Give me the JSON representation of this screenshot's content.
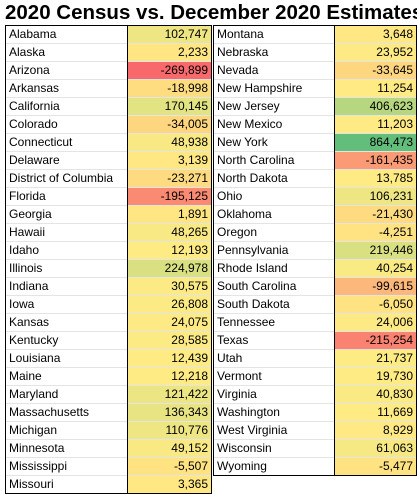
{
  "title": "2020 Census vs. December 2020 Estimates",
  "chart_data": {
    "type": "table",
    "title": "2020 Census vs. December 2020 Estimates",
    "columns": [
      {
        "rows": [
          {
            "state": "Alabama",
            "value": 102747,
            "display": "102,747"
          },
          {
            "state": "Alaska",
            "value": 2233,
            "display": "2,233"
          },
          {
            "state": "Arizona",
            "value": -269899,
            "display": "-269,899"
          },
          {
            "state": "Arkansas",
            "value": -18998,
            "display": "-18,998"
          },
          {
            "state": "California",
            "value": 170145,
            "display": "170,145"
          },
          {
            "state": "Colorado",
            "value": -34005,
            "display": "-34,005"
          },
          {
            "state": "Connecticut",
            "value": 48938,
            "display": "48,938"
          },
          {
            "state": "Delaware",
            "value": 3139,
            "display": "3,139"
          },
          {
            "state": "District of Columbia",
            "value": -23271,
            "display": "-23,271"
          },
          {
            "state": "Florida",
            "value": -195125,
            "display": "-195,125"
          },
          {
            "state": "Georgia",
            "value": 1891,
            "display": "1,891"
          },
          {
            "state": "Hawaii",
            "value": 48265,
            "display": "48,265"
          },
          {
            "state": "Idaho",
            "value": 12193,
            "display": "12,193"
          },
          {
            "state": "Illinois",
            "value": 224978,
            "display": "224,978"
          },
          {
            "state": "Indiana",
            "value": 30575,
            "display": "30,575"
          },
          {
            "state": "Iowa",
            "value": 26808,
            "display": "26,808"
          },
          {
            "state": "Kansas",
            "value": 24075,
            "display": "24,075"
          },
          {
            "state": "Kentucky",
            "value": 28585,
            "display": "28,585"
          },
          {
            "state": "Louisiana",
            "value": 12439,
            "display": "12,439"
          },
          {
            "state": "Maine",
            "value": 12218,
            "display": "12,218"
          },
          {
            "state": "Maryland",
            "value": 121422,
            "display": "121,422"
          },
          {
            "state": "Massachusetts",
            "value": 136343,
            "display": "136,343"
          },
          {
            "state": "Michigan",
            "value": 110776,
            "display": "110,776"
          },
          {
            "state": "Minnesota",
            "value": 49152,
            "display": "49,152"
          },
          {
            "state": "Mississippi",
            "value": -5507,
            "display": "-5,507"
          },
          {
            "state": "Missouri",
            "value": 3365,
            "display": "3,365"
          }
        ]
      },
      {
        "rows": [
          {
            "state": "Montana",
            "value": 3648,
            "display": "3,648"
          },
          {
            "state": "Nebraska",
            "value": 23952,
            "display": "23,952"
          },
          {
            "state": "Nevada",
            "value": -33645,
            "display": "-33,645"
          },
          {
            "state": "New Hampshire",
            "value": 11254,
            "display": "11,254"
          },
          {
            "state": "New Jersey",
            "value": 406623,
            "display": "406,623"
          },
          {
            "state": "New Mexico",
            "value": 11203,
            "display": "11,203"
          },
          {
            "state": "New York",
            "value": 864473,
            "display": "864,473"
          },
          {
            "state": "North Carolina",
            "value": -161435,
            "display": "-161,435"
          },
          {
            "state": "North Dakota",
            "value": 13785,
            "display": "13,785"
          },
          {
            "state": "Ohio",
            "value": 106231,
            "display": "106,231"
          },
          {
            "state": "Oklahoma",
            "value": -21430,
            "display": "-21,430"
          },
          {
            "state": "Oregon",
            "value": -4251,
            "display": "-4,251"
          },
          {
            "state": "Pennsylvania",
            "value": 219446,
            "display": "219,446"
          },
          {
            "state": "Rhode Island",
            "value": 40254,
            "display": "40,254"
          },
          {
            "state": "South Carolina",
            "value": -99615,
            "display": "-99,615"
          },
          {
            "state": "South Dakota",
            "value": -6050,
            "display": "-6,050"
          },
          {
            "state": "Tennessee",
            "value": 24006,
            "display": "24,006"
          },
          {
            "state": "Texas",
            "value": -215254,
            "display": "-215,254"
          },
          {
            "state": "Utah",
            "value": 21737,
            "display": "21,737"
          },
          {
            "state": "Vermont",
            "value": 19730,
            "display": "19,730"
          },
          {
            "state": "Virginia",
            "value": 40830,
            "display": "40,830"
          },
          {
            "state": "Washington",
            "value": 11669,
            "display": "11,669"
          },
          {
            "state": "West Virginia",
            "value": 8929,
            "display": "8,929"
          },
          {
            "state": "Wisconsin",
            "value": 61063,
            "display": "61,063"
          },
          {
            "state": "Wyoming",
            "value": -5477,
            "display": "-5,477"
          }
        ]
      }
    ],
    "color_scale": {
      "min_color": "#f8696b",
      "mid_color": "#ffeb84",
      "max_color": "#63be7b"
    }
  }
}
